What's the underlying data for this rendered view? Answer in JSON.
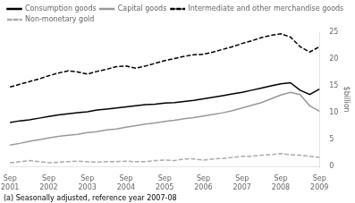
{
  "chart_data": {
    "type": "line",
    "ylabel": "$billion",
    "footnote": "(a) Seasonally adjusted, reference year 2007-08",
    "categories": [
      "Sep\n2001",
      null,
      null,
      null,
      "Sep\n2002",
      null,
      null,
      null,
      "Sep\n2003",
      null,
      null,
      null,
      "Sep\n2004",
      null,
      null,
      null,
      "Sep\n2005",
      null,
      null,
      null,
      "Sep\n2006",
      null,
      null,
      null,
      "Sep\n2007",
      null,
      null,
      null,
      "Sep\n2008",
      null,
      null,
      null,
      "Sep\n2009"
    ],
    "series": [
      {
        "name": "Consumption goods",
        "color": "#000000",
        "line_style": "solid",
        "values": [
          8.2,
          8.5,
          8.7,
          9.0,
          9.3,
          9.6,
          9.8,
          10.0,
          10.2,
          10.5,
          10.7,
          10.9,
          11.1,
          11.3,
          11.5,
          11.6,
          11.8,
          11.9,
          12.1,
          12.3,
          12.6,
          12.9,
          13.2,
          13.5,
          13.8,
          14.2,
          14.6,
          15.0,
          15.4,
          15.6,
          14.2,
          13.4,
          14.4
        ]
      },
      {
        "name": "Capital goods",
        "color": "#999999",
        "line_style": "solid",
        "values": [
          4.0,
          4.3,
          4.7,
          5.0,
          5.3,
          5.6,
          5.8,
          6.0,
          6.3,
          6.5,
          6.8,
          7.0,
          7.3,
          7.6,
          7.9,
          8.1,
          8.4,
          8.6,
          8.9,
          9.1,
          9.4,
          9.7,
          10.0,
          10.4,
          10.9,
          11.4,
          11.9,
          12.6,
          13.3,
          13.8,
          13.4,
          11.3,
          10.3
        ]
      },
      {
        "name": "Intermediate and other merchandise goods",
        "color": "#000000",
        "line_style": "dashed",
        "values": [
          14.8,
          15.3,
          15.8,
          16.3,
          16.9,
          17.4,
          17.8,
          17.6,
          17.2,
          17.7,
          18.1,
          18.6,
          18.7,
          18.3,
          18.7,
          19.2,
          19.7,
          20.1,
          20.5,
          20.8,
          20.9,
          21.3,
          21.8,
          22.3,
          22.9,
          23.4,
          24.0,
          24.4,
          24.7,
          24.1,
          22.3,
          21.3,
          22.3
        ]
      },
      {
        "name": "Non-monetary gold",
        "color": "#aaaaaa",
        "line_style": "dashed",
        "values": [
          0.7,
          0.9,
          1.1,
          0.9,
          0.7,
          0.8,
          0.9,
          1.0,
          0.9,
          0.8,
          0.9,
          0.9,
          1.0,
          0.9,
          0.9,
          1.1,
          1.2,
          1.1,
          1.4,
          1.4,
          1.2,
          1.4,
          1.5,
          1.7,
          1.9,
          1.9,
          2.1,
          2.2,
          2.4,
          2.2,
          2.1,
          1.9,
          1.7
        ]
      }
    ],
    "ylim": [
      0,
      25
    ],
    "yticks": [
      0,
      5,
      10,
      15,
      20,
      25
    ],
    "grid": false,
    "legend": "upper left"
  }
}
